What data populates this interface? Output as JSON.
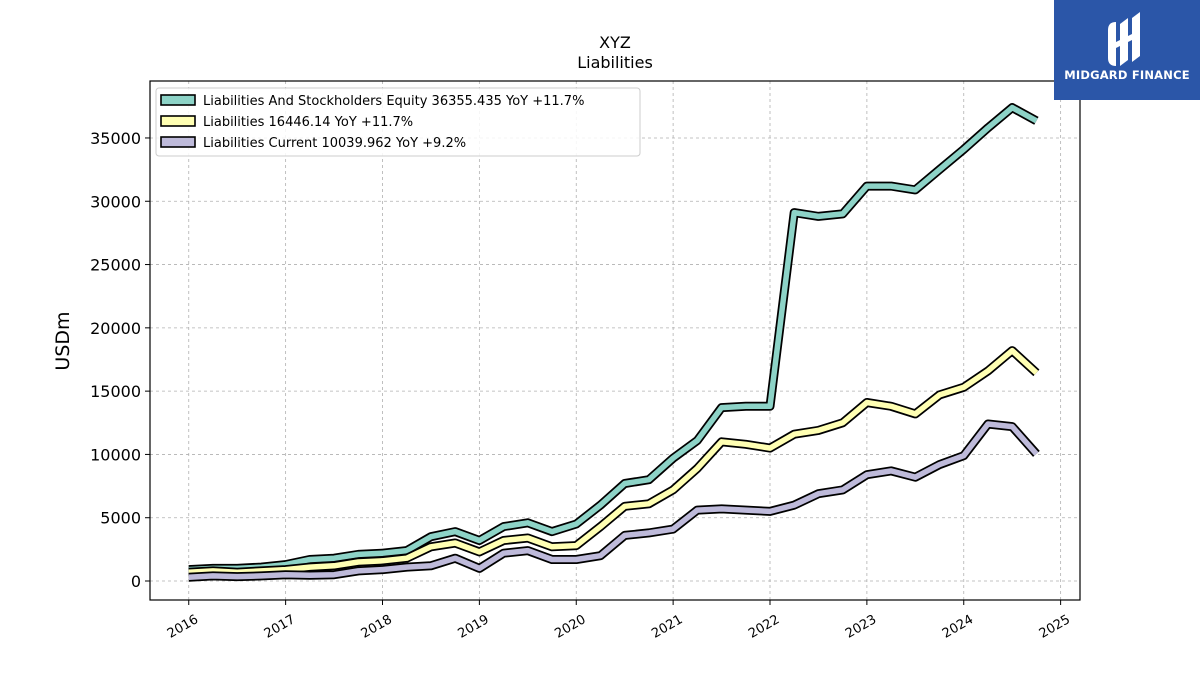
{
  "logo": {
    "text": "MIDGARD FINANCE",
    "icon": "midgard-mark-icon",
    "color": "#2b56a8"
  },
  "chart_data": {
    "type": "line",
    "title": "XYZ",
    "subtitle": "Liabilities",
    "xlabel": "",
    "ylabel": "USDm",
    "xlim": [
      2015.6,
      2025.2
    ],
    "ylim": [
      -1500,
      39500
    ],
    "grid": true,
    "legend_position": "top-left",
    "x_ticks": [
      "2016",
      "2017",
      "2018",
      "2019",
      "2020",
      "2021",
      "2022",
      "2023",
      "2024",
      "2025"
    ],
    "y_ticks": [
      "0",
      "5000",
      "10000",
      "15000",
      "20000",
      "25000",
      "30000",
      "35000"
    ],
    "x": [
      2016.0,
      2016.25,
      2016.5,
      2016.75,
      2017.0,
      2017.25,
      2017.5,
      2017.75,
      2018.0,
      2018.25,
      2018.5,
      2018.75,
      2019.0,
      2019.25,
      2019.5,
      2019.75,
      2020.0,
      2020.25,
      2020.5,
      2020.75,
      2021.0,
      2021.25,
      2021.5,
      2021.75,
      2022.0,
      2022.25,
      2022.5,
      2022.75,
      2023.0,
      2023.25,
      2023.5,
      2023.75,
      2024.0,
      2024.25,
      2024.5,
      2024.75
    ],
    "series": [
      {
        "name": "Liabilities And Stockholders Equity",
        "legend": "Liabilities And Stockholders Equity  36355.435 YoY +11.7%",
        "color": "#8dd3c7",
        "values": [
          900,
          1000,
          1000,
          1100,
          1300,
          1700,
          1800,
          2100,
          2200,
          2400,
          3500,
          3900,
          3200,
          4300,
          4600,
          3900,
          4500,
          6000,
          7700,
          8000,
          9700,
          11100,
          13700,
          13800,
          13800,
          29100,
          28800,
          29000,
          31200,
          31200,
          30900,
          32500,
          34100,
          35800,
          37400,
          36355
        ]
      },
      {
        "name": "Liabilities",
        "legend": "Liabilities  16446.14 YoY +11.7%",
        "color": "#ffffb3",
        "values": [
          700,
          800,
          700,
          800,
          900,
          1100,
          1200,
          1500,
          1600,
          1800,
          2700,
          3000,
          2300,
          3200,
          3400,
          2700,
          2800,
          4300,
          5900,
          6100,
          7200,
          8900,
          11000,
          10800,
          10500,
          11600,
          11900,
          12500,
          14100,
          13800,
          13200,
          14700,
          15300,
          16600,
          18200,
          16446
        ]
      },
      {
        "name": "Liabilities Current",
        "legend": "Liabilities Current  10039.962 YoY +9.2%",
        "color": "#bebada",
        "values": [
          300,
          400,
          350,
          400,
          500,
          450,
          500,
          800,
          900,
          1100,
          1200,
          1800,
          1000,
          2200,
          2400,
          1700,
          1700,
          2000,
          3600,
          3800,
          4100,
          5600,
          5700,
          5600,
          5500,
          6000,
          6900,
          7200,
          8400,
          8700,
          8200,
          9200,
          9900,
          12400,
          12200,
          10040
        ]
      }
    ]
  }
}
